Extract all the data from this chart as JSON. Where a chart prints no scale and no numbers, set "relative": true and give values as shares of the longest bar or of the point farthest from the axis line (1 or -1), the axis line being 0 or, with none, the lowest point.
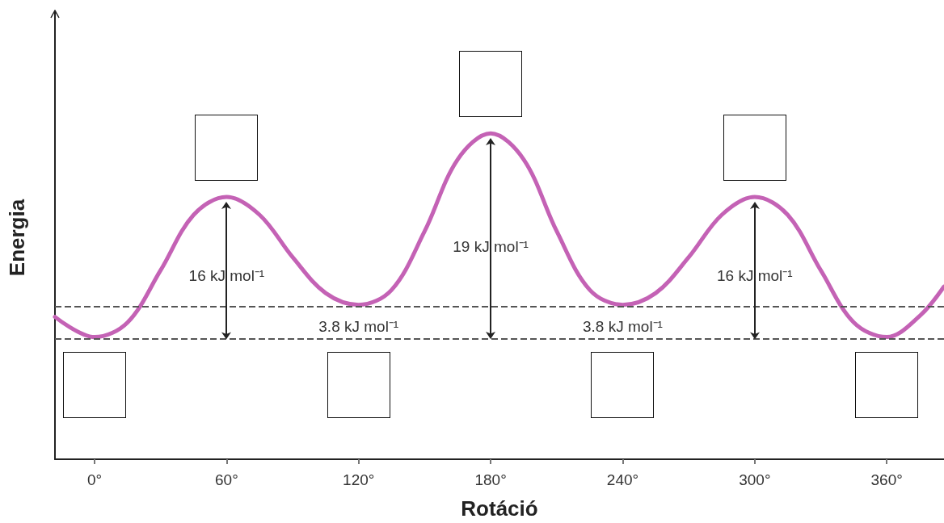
{
  "chart_data": {
    "type": "line",
    "relative": true,
    "xlabel": "Rotáció",
    "ylabel": "Energia",
    "x": [
      -18,
      0,
      15,
      30,
      45,
      60,
      75,
      90,
      105,
      120,
      135,
      150,
      165,
      180,
      195,
      210,
      225,
      240,
      255,
      270,
      285,
      300,
      315,
      330,
      345,
      360,
      375,
      386
    ],
    "series": [
      {
        "color": "#c462b5",
        "values": [
          0.437,
          0.375,
          0.42,
          0.58,
          0.75,
          0.805,
          0.75,
          0.62,
          0.51,
          0.474,
          0.52,
          0.7,
          0.92,
          1.0,
          0.92,
          0.7,
          0.52,
          0.474,
          0.51,
          0.62,
          0.75,
          0.805,
          0.75,
          0.58,
          0.42,
          0.375,
          0.44,
          0.53
        ]
      }
    ],
    "xlim": [
      -18,
      386
    ],
    "xticks": [
      {
        "value": 0,
        "label": "0°"
      },
      {
        "value": 60,
        "label": "60°"
      },
      {
        "value": 120,
        "label": "120°"
      },
      {
        "value": 180,
        "label": "180°"
      },
      {
        "value": 240,
        "label": "240°"
      },
      {
        "value": 300,
        "label": "300°"
      },
      {
        "value": 360,
        "label": "360°"
      }
    ],
    "ref_lines": [
      {
        "axis": "y",
        "value": 0.368,
        "color": "#555555",
        "line_style": "dashed"
      },
      {
        "axis": "y",
        "value": 0.467,
        "color": "#555555",
        "line_style": "dashed"
      }
    ],
    "annotations": [
      "16 kJ mol⁻¹",
      "19 kJ mol⁻¹",
      "16 kJ mol⁻¹",
      "3.8 kJ mol⁻¹",
      "3.8 kJ mol⁻¹"
    ],
    "marker": "none",
    "line_style": "solid"
  }
}
